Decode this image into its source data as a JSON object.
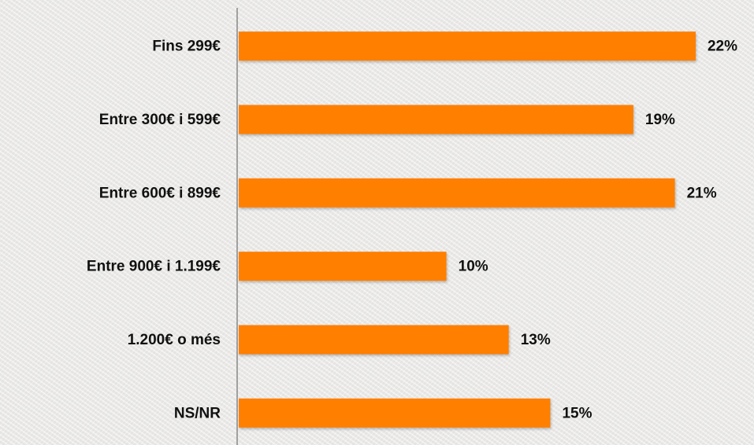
{
  "chart_data": {
    "type": "bar",
    "orientation": "horizontal",
    "categories": [
      "Fins 299€",
      "Entre 300€ i 599€",
      "Entre 600€ i 899€",
      "Entre 900€ i 1.199€",
      "1.200€ o més",
      "NS/NR"
    ],
    "values": [
      22,
      19,
      21,
      10,
      13,
      15
    ],
    "value_labels": [
      "22%",
      "19%",
      "21%",
      "10%",
      "13%",
      "15%"
    ],
    "color": "#ff7f00",
    "xlim": [
      0,
      24
    ]
  }
}
